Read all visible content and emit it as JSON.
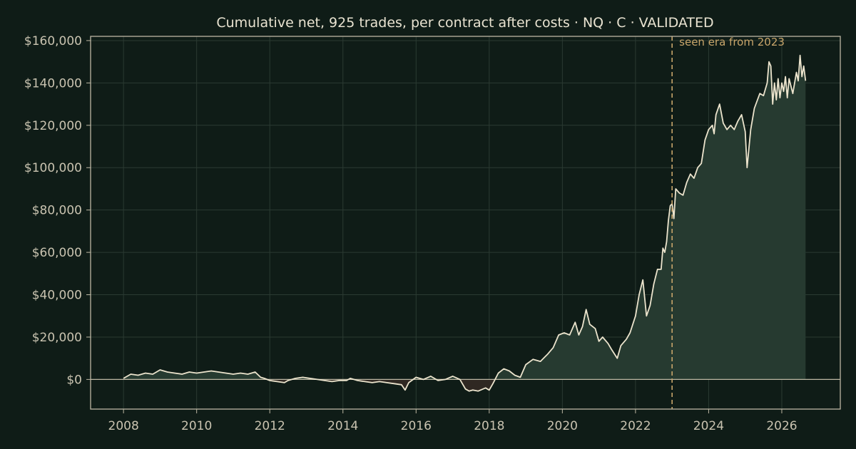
{
  "colors": {
    "background": "#0f1c17",
    "plot_bg": "#0f1c17",
    "axis": "#bdb7a3",
    "grid": "#2b3a32",
    "line": "#ece4cd",
    "fill_positive": "#263a30",
    "fill_negative": "#2f2822",
    "era_line": "#c9a66b",
    "text": "#c9c3b0"
  },
  "chart_data": {
    "type": "area",
    "title": "Cumulative net, 925 trades, per contract after costs  ·  NQ · C · VALIDATED",
    "xlabel": "",
    "ylabel": "",
    "xlim": [
      2007.1,
      2027.6
    ],
    "ylim": [
      -14000,
      162000
    ],
    "x_ticks": [
      2008,
      2010,
      2012,
      2014,
      2016,
      2018,
      2020,
      2022,
      2024,
      2026
    ],
    "y_ticks": [
      0,
      20000,
      40000,
      60000,
      80000,
      100000,
      120000,
      140000,
      160000
    ],
    "y_tick_labels": [
      "$0",
      "$20,000",
      "$40,000",
      "$60,000",
      "$80,000",
      "$100,000",
      "$120,000",
      "$140,000",
      "$160,000"
    ],
    "grid": true,
    "baseline": 0,
    "annotation": {
      "x": 2023.0,
      "text": "seen era from 2023"
    },
    "series": [
      {
        "x": [
          2008.0,
          2008.2,
          2008.4,
          2008.6,
          2008.8,
          2009.0,
          2009.2,
          2009.4,
          2009.6,
          2009.8,
          2010.0,
          2010.2,
          2010.4,
          2010.6,
          2010.8,
          2011.0,
          2011.2,
          2011.4,
          2011.6,
          2011.75,
          2011.85,
          2012.0,
          2012.2,
          2012.4,
          2012.5,
          2012.7,
          2012.9,
          2013.1,
          2013.3,
          2013.5,
          2013.7,
          2013.9,
          2014.1,
          2014.2,
          2014.4,
          2014.6,
          2014.8,
          2015.0,
          2015.2,
          2015.4,
          2015.6,
          2015.7,
          2015.8,
          2016.0,
          2016.2,
          2016.4,
          2016.6,
          2016.8,
          2017.0,
          2017.2,
          2017.35,
          2017.45,
          2017.55,
          2017.7,
          2017.9,
          2018.0,
          2018.1,
          2018.25,
          2018.4,
          2018.55,
          2018.7,
          2018.85,
          2019.0,
          2019.2,
          2019.4,
          2019.6,
          2019.75,
          2019.9,
          2020.05,
          2020.2,
          2020.35,
          2020.45,
          2020.55,
          2020.65,
          2020.75,
          2020.9,
          2021.0,
          2021.1,
          2021.25,
          2021.35,
          2021.5,
          2021.6,
          2021.75,
          2021.85,
          2022.0,
          2022.1,
          2022.2,
          2022.3,
          2022.4,
          2022.5,
          2022.6,
          2022.7,
          2022.75,
          2022.8,
          2022.85,
          2022.9,
          2022.95,
          2023.0,
          2023.05,
          2023.1,
          2023.2,
          2023.3,
          2023.4,
          2023.5,
          2023.6,
          2023.7,
          2023.8,
          2023.9,
          2024.0,
          2024.1,
          2024.15,
          2024.2,
          2024.3,
          2024.4,
          2024.5,
          2024.6,
          2024.7,
          2024.8,
          2024.9,
          2025.0,
          2025.05,
          2025.15,
          2025.25,
          2025.4,
          2025.5,
          2025.6,
          2025.65,
          2025.7,
          2025.75,
          2025.8,
          2025.85,
          2025.9,
          2025.95,
          2026.0,
          2026.05,
          2026.1,
          2026.15,
          2026.2,
          2026.3,
          2026.4,
          2026.45,
          2026.5,
          2026.55,
          2026.6,
          2026.65
        ],
        "values": [
          500,
          2500,
          2000,
          3000,
          2500,
          4500,
          3500,
          3000,
          2500,
          3500,
          3000,
          3500,
          4000,
          3500,
          3000,
          2500,
          3000,
          2500,
          3500,
          1000,
          500,
          -500,
          -1000,
          -1500,
          -500,
          500,
          1000,
          500,
          0,
          -500,
          -1000,
          -500,
          -500,
          500,
          -500,
          -1000,
          -1500,
          -1000,
          -1500,
          -2000,
          -2500,
          -5000,
          -1500,
          1000,
          0,
          1500,
          -500,
          0,
          1500,
          0,
          -4500,
          -5500,
          -5000,
          -5500,
          -4000,
          -5000,
          -2000,
          3000,
          5000,
          4000,
          2000,
          1000,
          7000,
          9500,
          8500,
          12000,
          15000,
          21000,
          22000,
          21000,
          27000,
          21000,
          25000,
          33000,
          26000,
          24000,
          18000,
          20000,
          17000,
          14000,
          10000,
          16000,
          19000,
          22000,
          30000,
          40000,
          47000,
          30000,
          35000,
          45000,
          52000,
          52000,
          62000,
          60000,
          65000,
          75000,
          82000,
          83000,
          76000,
          90000,
          88000,
          87000,
          93000,
          97000,
          95000,
          100000,
          102000,
          113000,
          118000,
          120000,
          116000,
          125000,
          130000,
          121000,
          118000,
          120000,
          118000,
          122000,
          125000,
          117000,
          100000,
          118000,
          128000,
          135000,
          134000,
          140000,
          150000,
          148000,
          130000,
          140000,
          132000,
          142000,
          133000,
          140000,
          136000,
          143000,
          133000,
          142000,
          135000,
          145000,
          141000,
          153000,
          143000,
          148000,
          141000
        ]
      }
    ]
  }
}
